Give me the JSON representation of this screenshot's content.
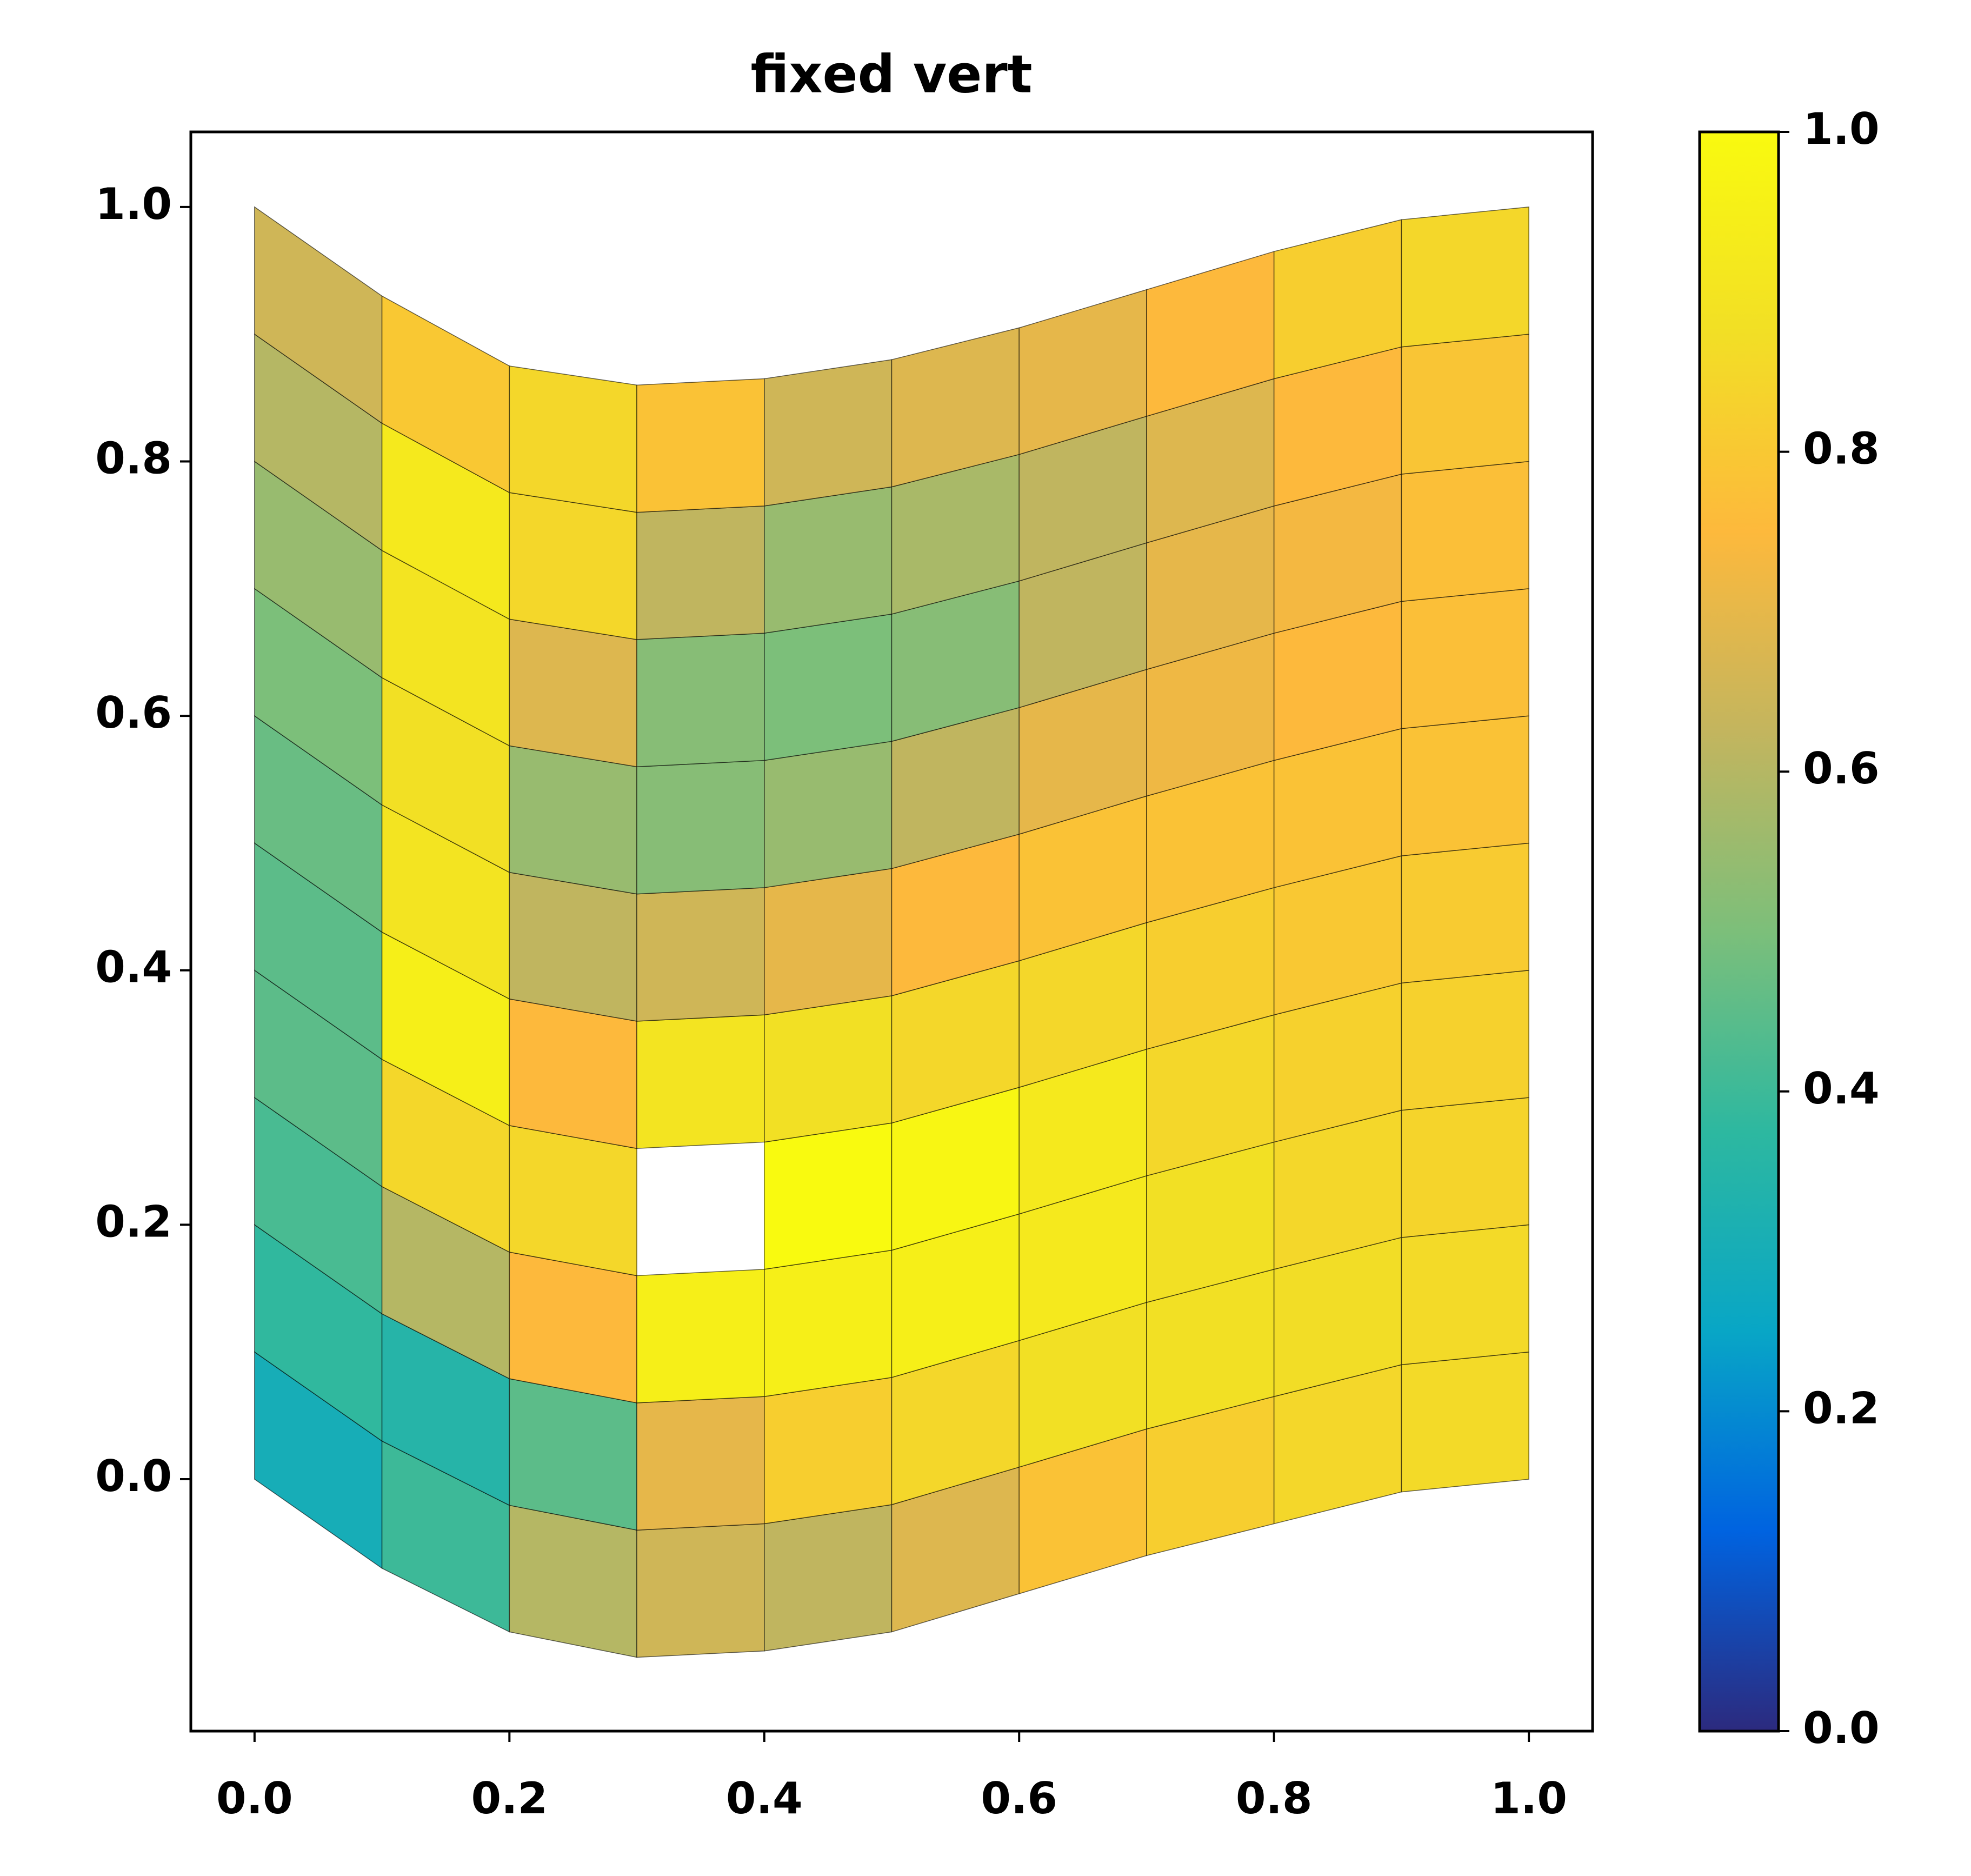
{
  "chart_data": {
    "type": "mesh",
    "title": "fixed vert",
    "x": [
      0,
      0.1,
      0.2,
      0.3,
      0.4,
      0.5,
      0.6,
      0.7,
      0.8,
      0.9,
      1.0
    ],
    "y_bottom": [
      0,
      -0.07,
      -0.12,
      -0.14,
      -0.135,
      -0.12,
      -0.09,
      -0.06,
      -0.035,
      -0.01,
      0
    ],
    "y_top": [
      1.0,
      0.93,
      0.875,
      0.86,
      0.865,
      0.88,
      0.905,
      0.935,
      0.965,
      0.99,
      1.0
    ],
    "values": [
      [
        0.3,
        0.38,
        0.42,
        0.45,
        0.45,
        0.47,
        0.5,
        0.55,
        0.6,
        0.65
      ],
      [
        0.4,
        0.35,
        0.6,
        0.85,
        0.95,
        0.9,
        0.88,
        0.9,
        0.92,
        0.8
      ],
      [
        0.6,
        0.45,
        0.75,
        0.85,
        0.75,
        0.62,
        0.55,
        0.68,
        0.85,
        0.85
      ],
      [
        0.65,
        0.7,
        0.95,
        null,
        0.9,
        0.65,
        0.52,
        0.52,
        0.62,
        0.78
      ],
      [
        0.62,
        0.82,
        0.95,
        1.0,
        0.88,
        0.7,
        0.55,
        0.5,
        0.55,
        0.65
      ],
      [
        0.68,
        0.85,
        0.95,
        0.98,
        0.85,
        0.75,
        0.62,
        0.52,
        0.58,
        0.68
      ],
      [
        0.78,
        0.88,
        0.92,
        0.92,
        0.85,
        0.78,
        0.7,
        0.62,
        0.62,
        0.7
      ],
      [
        0.82,
        0.88,
        0.88,
        0.85,
        0.82,
        0.78,
        0.72,
        0.7,
        0.68,
        0.75
      ],
      [
        0.85,
        0.87,
        0.85,
        0.83,
        0.8,
        0.78,
        0.75,
        0.73,
        0.75,
        0.82
      ],
      [
        0.86,
        0.86,
        0.84,
        0.83,
        0.81,
        0.78,
        0.77,
        0.77,
        0.79,
        0.85
      ]
    ],
    "colormap": [
      "#2c2a7e",
      "#0063e0",
      "#08a6c6",
      "#2db8a0",
      "#7cbf7a",
      "#c3b55e",
      "#fdb93c",
      "#f2df25",
      "#f9fa0f"
    ],
    "xlim": [
      -0.05,
      1.05
    ],
    "ylim": [
      -0.198,
      1.059
    ],
    "xticks": [
      {
        "value": 0,
        "label": "0.0"
      },
      0.2,
      0.4,
      0.6,
      0.8,
      {
        "value": 1,
        "label": "1.0"
      }
    ],
    "yticks": [
      {
        "value": 0,
        "label": "0.0"
      },
      0.2,
      0.4,
      0.6,
      0.8,
      {
        "value": 1,
        "label": "1.0"
      }
    ],
    "clim": [
      0,
      1
    ],
    "cticks": [
      {
        "value": 0,
        "label": "0.0"
      },
      0.2,
      0.4,
      0.6,
      0.8,
      {
        "value": 1,
        "label": "1.0"
      }
    ]
  }
}
